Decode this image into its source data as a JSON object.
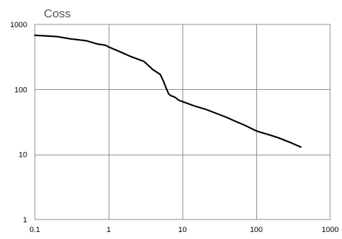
{
  "chart_data": {
    "type": "line",
    "title": "Coss",
    "xlabel": "",
    "ylabel": "",
    "x_scale": "log",
    "y_scale": "log",
    "xlim": [
      0.1,
      1000
    ],
    "ylim": [
      1,
      1000
    ],
    "x_ticks": [
      0.1,
      1,
      10,
      100,
      1000
    ],
    "x_tick_labels": [
      "0.1",
      "1",
      "10",
      "100",
      "1000"
    ],
    "y_ticks": [
      1,
      10,
      100,
      1000
    ],
    "y_tick_labels": [
      "1",
      "10",
      "100",
      "1000"
    ],
    "grid": true,
    "legend": "none",
    "line_color": "#000000",
    "grid_color": "#8c8c8c",
    "title_color": "#595959",
    "series": [
      {
        "x": [
          0.1,
          0.2,
          0.3,
          0.5,
          0.7,
          0.9,
          1.0,
          1.5,
          2.0,
          3.0,
          4.0,
          5.0,
          5.5,
          6.0,
          6.5,
          7.0,
          7.5,
          8.0,
          9.0,
          10,
          15,
          20,
          30,
          40,
          50,
          70,
          100,
          150,
          200,
          300,
          400
        ],
        "y": [
          680,
          650,
          600,
          560,
          500,
          480,
          450,
          370,
          320,
          270,
          200,
          170,
          135,
          105,
          85,
          80,
          78,
          75,
          68,
          65,
          55,
          50,
          42,
          37,
          33,
          28,
          23,
          20,
          18,
          15,
          13
        ]
      }
    ]
  }
}
